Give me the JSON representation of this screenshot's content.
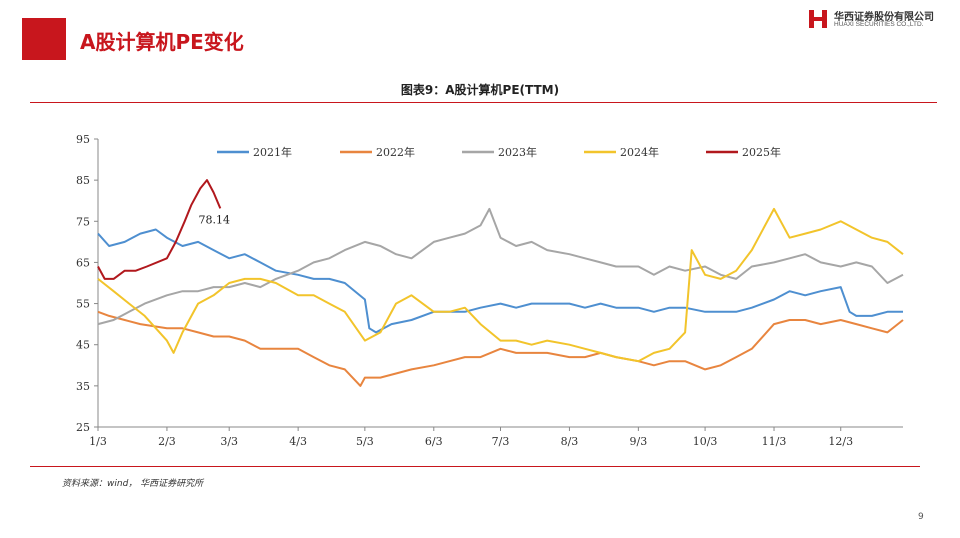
{
  "header": {
    "title": "A股计算机PE变化",
    "logo_cn": "华西证券股份有限公司",
    "logo_en": "HUAXI SECURITIES CO.,LTD."
  },
  "figure_title": "图表9：A股计算机PE(TTM)",
  "source": "资料来源：wind， 华西证券研究所",
  "page_number": "9",
  "colors": {
    "brand_red": "#c8161d"
  },
  "chart_data": {
    "type": "line",
    "title": "图表9：A股计算机PE(TTM)",
    "xlabel": "",
    "ylabel": "",
    "x_axis": "day of year (Jan 3 – Dec 31)",
    "xlim": [
      "1/3",
      "12/31"
    ],
    "ylim": [
      25,
      95
    ],
    "y_ticks": [
      25,
      35,
      45,
      55,
      65,
      75,
      85,
      95
    ],
    "x_tick_labels": [
      "1/3",
      "2/3",
      "3/3",
      "4/3",
      "5/3",
      "6/3",
      "7/3",
      "8/3",
      "9/3",
      "10/3",
      "11/3",
      "12/3"
    ],
    "grid": false,
    "legend_position": "top",
    "annotations": [
      {
        "text": "78.14",
        "series": "2025年",
        "x": "2/27",
        "y": 78.14
      }
    ],
    "series": [
      {
        "name": "2021年",
        "color": "#4e8fd0",
        "points": [
          [
            "1/3",
            72
          ],
          [
            "1/8",
            69
          ],
          [
            "1/15",
            70
          ],
          [
            "1/22",
            72
          ],
          [
            "1/29",
            73
          ],
          [
            "2/3",
            71
          ],
          [
            "2/10",
            69
          ],
          [
            "2/17",
            70
          ],
          [
            "2/24",
            68
          ],
          [
            "3/3",
            66
          ],
          [
            "3/10",
            67
          ],
          [
            "3/17",
            65
          ],
          [
            "3/24",
            63
          ],
          [
            "4/3",
            62
          ],
          [
            "4/10",
            61
          ],
          [
            "4/17",
            61
          ],
          [
            "4/24",
            60
          ],
          [
            "5/3",
            56
          ],
          [
            "5/5",
            49
          ],
          [
            "5/8",
            48
          ],
          [
            "5/15",
            50
          ],
          [
            "5/24",
            51
          ],
          [
            "6/3",
            53
          ],
          [
            "6/10",
            53
          ],
          [
            "6/17",
            53
          ],
          [
            "6/24",
            54
          ],
          [
            "7/3",
            55
          ],
          [
            "7/10",
            54
          ],
          [
            "7/17",
            55
          ],
          [
            "7/24",
            55
          ],
          [
            "8/3",
            55
          ],
          [
            "8/10",
            54
          ],
          [
            "8/17",
            55
          ],
          [
            "8/24",
            54
          ],
          [
            "9/3",
            54
          ],
          [
            "9/10",
            53
          ],
          [
            "9/17",
            54
          ],
          [
            "9/24",
            54
          ],
          [
            "10/3",
            53
          ],
          [
            "10/10",
            53
          ],
          [
            "10/17",
            53
          ],
          [
            "10/24",
            54
          ],
          [
            "11/3",
            56
          ],
          [
            "11/10",
            58
          ],
          [
            "11/17",
            57
          ],
          [
            "11/24",
            58
          ],
          [
            "12/3",
            59
          ],
          [
            "12/7",
            53
          ],
          [
            "12/10",
            52
          ],
          [
            "12/17",
            52
          ],
          [
            "12/24",
            53
          ],
          [
            "12/31",
            53
          ]
        ]
      },
      {
        "name": "2022年",
        "color": "#e8853f",
        "points": [
          [
            "1/3",
            53
          ],
          [
            "1/8",
            52
          ],
          [
            "1/15",
            51
          ],
          [
            "1/22",
            50
          ],
          [
            "2/3",
            49
          ],
          [
            "2/10",
            49
          ],
          [
            "2/17",
            48
          ],
          [
            "2/24",
            47
          ],
          [
            "3/3",
            47
          ],
          [
            "3/10",
            46
          ],
          [
            "3/17",
            44
          ],
          [
            "3/24",
            44
          ],
          [
            "4/3",
            44
          ],
          [
            "4/10",
            42
          ],
          [
            "4/17",
            40
          ],
          [
            "4/24",
            39
          ],
          [
            "5/1",
            35
          ],
          [
            "5/3",
            37
          ],
          [
            "5/10",
            37
          ],
          [
            "5/17",
            38
          ],
          [
            "5/24",
            39
          ],
          [
            "6/3",
            40
          ],
          [
            "6/10",
            41
          ],
          [
            "6/17",
            42
          ],
          [
            "6/24",
            42
          ],
          [
            "7/3",
            44
          ],
          [
            "7/10",
            43
          ],
          [
            "7/17",
            43
          ],
          [
            "7/24",
            43
          ],
          [
            "8/3",
            42
          ],
          [
            "8/10",
            42
          ],
          [
            "8/17",
            43
          ],
          [
            "8/24",
            42
          ],
          [
            "9/3",
            41
          ],
          [
            "9/10",
            40
          ],
          [
            "9/17",
            41
          ],
          [
            "9/24",
            41
          ],
          [
            "10/3",
            39
          ],
          [
            "10/10",
            40
          ],
          [
            "10/17",
            42
          ],
          [
            "10/24",
            44
          ],
          [
            "11/3",
            50
          ],
          [
            "11/10",
            51
          ],
          [
            "11/17",
            51
          ],
          [
            "11/24",
            50
          ],
          [
            "12/3",
            51
          ],
          [
            "12/10",
            50
          ],
          [
            "12/17",
            49
          ],
          [
            "12/24",
            48
          ],
          [
            "12/31",
            51
          ]
        ]
      },
      {
        "name": "2023年",
        "color": "#a6a6a6",
        "points": [
          [
            "1/3",
            50
          ],
          [
            "1/10",
            51
          ],
          [
            "1/17",
            53
          ],
          [
            "1/24",
            55
          ],
          [
            "2/3",
            57
          ],
          [
            "2/10",
            58
          ],
          [
            "2/17",
            58
          ],
          [
            "2/24",
            59
          ],
          [
            "3/3",
            59
          ],
          [
            "3/10",
            60
          ],
          [
            "3/17",
            59
          ],
          [
            "3/24",
            61
          ],
          [
            "4/3",
            63
          ],
          [
            "4/10",
            65
          ],
          [
            "4/17",
            66
          ],
          [
            "4/24",
            68
          ],
          [
            "5/3",
            70
          ],
          [
            "5/10",
            69
          ],
          [
            "5/17",
            67
          ],
          [
            "5/24",
            66
          ],
          [
            "6/3",
            70
          ],
          [
            "6/10",
            71
          ],
          [
            "6/17",
            72
          ],
          [
            "6/24",
            74
          ],
          [
            "6/28",
            78
          ],
          [
            "7/3",
            71
          ],
          [
            "7/10",
            69
          ],
          [
            "7/17",
            70
          ],
          [
            "7/24",
            68
          ],
          [
            "8/3",
            67
          ],
          [
            "8/10",
            66
          ],
          [
            "8/17",
            65
          ],
          [
            "8/24",
            64
          ],
          [
            "9/3",
            64
          ],
          [
            "9/10",
            62
          ],
          [
            "9/17",
            64
          ],
          [
            "9/24",
            63
          ],
          [
            "10/3",
            64
          ],
          [
            "10/10",
            62
          ],
          [
            "10/17",
            61
          ],
          [
            "10/24",
            64
          ],
          [
            "11/3",
            65
          ],
          [
            "11/10",
            66
          ],
          [
            "11/17",
            67
          ],
          [
            "11/24",
            65
          ],
          [
            "12/3",
            64
          ],
          [
            "12/10",
            65
          ],
          [
            "12/17",
            64
          ],
          [
            "12/24",
            60
          ],
          [
            "12/31",
            62
          ]
        ]
      },
      {
        "name": "2024年",
        "color": "#f2c42b",
        "points": [
          [
            "1/3",
            61
          ],
          [
            "1/10",
            58
          ],
          [
            "1/17",
            55
          ],
          [
            "1/24",
            52
          ],
          [
            "2/3",
            46
          ],
          [
            "2/6",
            43
          ],
          [
            "2/10",
            48
          ],
          [
            "2/17",
            55
          ],
          [
            "2/24",
            57
          ],
          [
            "3/3",
            60
          ],
          [
            "3/10",
            61
          ],
          [
            "3/17",
            61
          ],
          [
            "3/24",
            60
          ],
          [
            "4/3",
            57
          ],
          [
            "4/10",
            57
          ],
          [
            "4/17",
            55
          ],
          [
            "4/24",
            53
          ],
          [
            "5/3",
            46
          ],
          [
            "5/10",
            48
          ],
          [
            "5/17",
            55
          ],
          [
            "5/24",
            57
          ],
          [
            "6/3",
            53
          ],
          [
            "6/10",
            53
          ],
          [
            "6/17",
            54
          ],
          [
            "6/24",
            50
          ],
          [
            "7/3",
            46
          ],
          [
            "7/10",
            46
          ],
          [
            "7/17",
            45
          ],
          [
            "7/24",
            46
          ],
          [
            "8/3",
            45
          ],
          [
            "8/10",
            44
          ],
          [
            "8/17",
            43
          ],
          [
            "8/24",
            42
          ],
          [
            "9/3",
            41
          ],
          [
            "9/10",
            43
          ],
          [
            "9/17",
            44
          ],
          [
            "9/24",
            48
          ],
          [
            "9/27",
            68
          ],
          [
            "10/3",
            62
          ],
          [
            "10/10",
            61
          ],
          [
            "10/17",
            63
          ],
          [
            "10/24",
            68
          ],
          [
            "11/3",
            78
          ],
          [
            "11/10",
            71
          ],
          [
            "11/17",
            72
          ],
          [
            "11/24",
            73
          ],
          [
            "12/3",
            75
          ],
          [
            "12/10",
            73
          ],
          [
            "12/17",
            71
          ],
          [
            "12/24",
            70
          ],
          [
            "12/31",
            67
          ]
        ]
      },
      {
        "name": "2025年",
        "color": "#b1181d",
        "points": [
          [
            "1/3",
            64
          ],
          [
            "1/6",
            61
          ],
          [
            "1/10",
            61
          ],
          [
            "1/15",
            63
          ],
          [
            "1/20",
            63
          ],
          [
            "1/25",
            64
          ],
          [
            "2/3",
            66
          ],
          [
            "2/7",
            70
          ],
          [
            "2/11",
            75
          ],
          [
            "2/14",
            79
          ],
          [
            "2/18",
            83
          ],
          [
            "2/21",
            85
          ],
          [
            "2/24",
            82
          ],
          [
            "2/27",
            78.14
          ]
        ]
      }
    ]
  }
}
